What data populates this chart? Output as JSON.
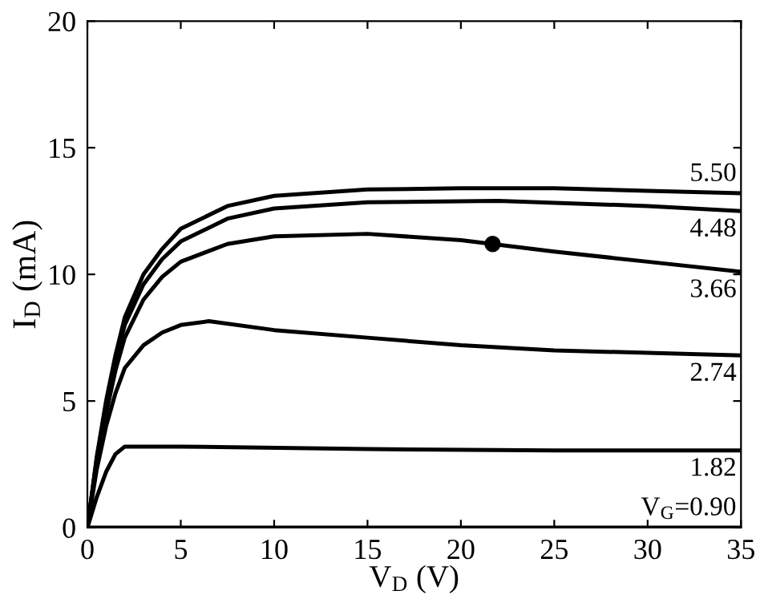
{
  "chart_data": {
    "type": "line",
    "xlabel": "V$_{D}$ (V)",
    "ylabel": "I$_{D}$ (mA)",
    "xlim": [
      0,
      35
    ],
    "ylim": [
      0,
      20
    ],
    "xticks": [
      0,
      5,
      10,
      15,
      20,
      25,
      30,
      35
    ],
    "yticks": [
      0,
      5,
      10,
      15,
      20
    ],
    "grid": false,
    "legend": "right",
    "marker": "none",
    "line_style": "solid",
    "series": [
      {
        "name": "5.50",
        "color": "#000000",
        "x": [
          0,
          0.5,
          1,
          1.5,
          2,
          3,
          4,
          5,
          7.5,
          10,
          15,
          20,
          25,
          30,
          35
        ],
        "values": [
          0,
          2.8,
          5.0,
          6.8,
          8.3,
          10.0,
          11.0,
          11.8,
          12.7,
          13.1,
          13.35,
          13.4,
          13.4,
          13.3,
          13.2
        ]
      },
      {
        "name": "4.48",
        "color": "#000000",
        "x": [
          0,
          0.5,
          1,
          1.5,
          2,
          3,
          4,
          5,
          7.5,
          10,
          15,
          22,
          30,
          35
        ],
        "values": [
          0,
          2.7,
          4.8,
          6.6,
          8.0,
          9.6,
          10.6,
          11.3,
          12.2,
          12.6,
          12.85,
          12.9,
          12.7,
          12.5
        ]
      },
      {
        "name": "3.66",
        "color": "#000000",
        "x": [
          0,
          0.5,
          1,
          1.5,
          2,
          3,
          4,
          5,
          7.5,
          10,
          15,
          20,
          25,
          30,
          35
        ],
        "values": [
          0,
          2.6,
          4.5,
          6.2,
          7.5,
          9.0,
          9.9,
          10.5,
          11.2,
          11.5,
          11.6,
          11.35,
          10.9,
          10.5,
          10.1
        ]
      },
      {
        "name": "2.74",
        "color": "#000000",
        "x": [
          0,
          0.5,
          1,
          1.5,
          2,
          3,
          4,
          5,
          6.5,
          10,
          15,
          20,
          25,
          30,
          35
        ],
        "values": [
          0,
          2.3,
          4.0,
          5.3,
          6.3,
          7.2,
          7.7,
          8.0,
          8.15,
          7.8,
          7.5,
          7.2,
          7.0,
          6.9,
          6.8
        ]
      },
      {
        "name": "1.82",
        "color": "#000000",
        "x": [
          0,
          0.5,
          1,
          1.5,
          2,
          5,
          15,
          25,
          35
        ],
        "values": [
          0,
          1.2,
          2.2,
          2.9,
          3.2,
          3.2,
          3.1,
          3.05,
          3.05
        ]
      },
      {
        "name": "V$_{G}$=0.90",
        "color": "#000000",
        "x": [
          0,
          35
        ],
        "values": [
          0,
          0
        ]
      },
      {
        "type": "scatter",
        "color": "#000000",
        "marker": "circle",
        "x": [
          21.7
        ],
        "values": [
          11.2
        ]
      }
    ]
  }
}
